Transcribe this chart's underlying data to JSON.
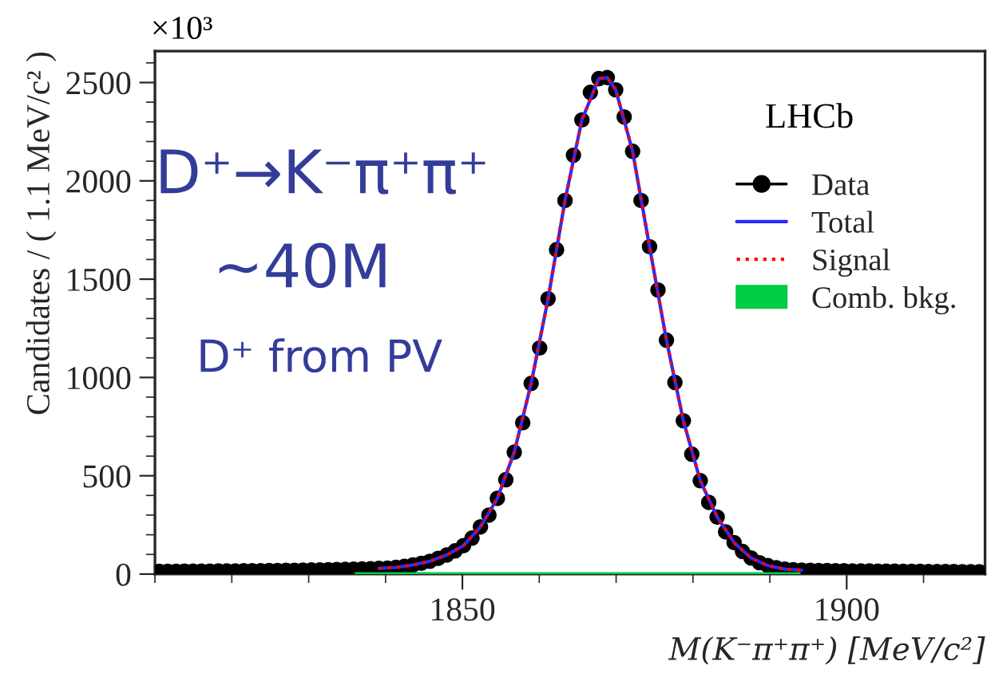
{
  "chart_data": {
    "type": "scatter",
    "xlabel": "M(K⁻π⁺π⁺) [MeV/c²]",
    "ylabel": "Candidates / ( 1.1 MeV/c² )",
    "xlim": [
      1810,
      1918
    ],
    "xticks": [
      1850,
      1900
    ],
    "ylim": [
      0,
      2660
    ],
    "yticks": [
      0,
      500,
      1000,
      1500,
      2000,
      2500
    ],
    "legend": "top right",
    "grid": false,
    "annotations": [
      "×10³",
      "LHCb",
      "D⁺→K⁻π⁺π⁺",
      "~40M",
      "D⁺ from PV"
    ],
    "series": [
      {
        "name": "Data",
        "marker": "circle",
        "color": "#000000",
        "x": [
          1810.55,
          1811.65,
          1812.75,
          1813.85,
          1814.95,
          1816.05,
          1817.15,
          1818.25,
          1819.35,
          1820.45,
          1821.55,
          1822.65,
          1823.75,
          1824.85,
          1825.95,
          1827.05,
          1828.15,
          1829.25,
          1830.35,
          1831.45,
          1832.55,
          1833.65,
          1834.75,
          1835.85,
          1836.95,
          1838.05,
          1839.15,
          1840.25,
          1841.35,
          1842.45,
          1843.55,
          1844.65,
          1845.75,
          1846.85,
          1847.95,
          1849.05,
          1850.15,
          1851.25,
          1852.35,
          1853.45,
          1854.55,
          1855.65,
          1856.75,
          1857.85,
          1858.95,
          1860.05,
          1861.15,
          1862.25,
          1863.35,
          1864.45,
          1865.55,
          1866.65,
          1867.75,
          1868.85,
          1869.95,
          1871.05,
          1872.15,
          1873.25,
          1874.35,
          1875.45,
          1876.55,
          1877.65,
          1878.75,
          1879.85,
          1880.95,
          1882.05,
          1883.15,
          1884.25,
          1885.35,
          1886.45,
          1887.55,
          1888.65,
          1889.75,
          1890.85,
          1891.95,
          1893.05,
          1894.15,
          1895.25,
          1896.35,
          1897.45,
          1898.55,
          1899.65,
          1900.75,
          1901.85,
          1902.95,
          1904.05,
          1905.15,
          1906.25,
          1907.35,
          1908.45,
          1909.55,
          1910.65,
          1911.75,
          1912.85,
          1913.95,
          1915.05,
          1916.15,
          1917.25
        ],
        "values": [
          14,
          14,
          14,
          15,
          15,
          15,
          15,
          16,
          16,
          16,
          17,
          17,
          17,
          18,
          18,
          19,
          19,
          20,
          21,
          21,
          22,
          23,
          24,
          25,
          26,
          27,
          29,
          30,
          34,
          39,
          46,
          55,
          65,
          80,
          97,
          118,
          145,
          183,
          240,
          300,
          385,
          480,
          620,
          770,
          970,
          1150,
          1400,
          1650,
          1900,
          2130,
          2310,
          2450,
          2520,
          2525,
          2463,
          2325,
          2150,
          1900,
          1665,
          1445,
          1190,
          975,
          780,
          610,
          475,
          365,
          290,
          215,
          160,
          115,
          82,
          58,
          43,
          32,
          25,
          22,
          20,
          19,
          18,
          18,
          17,
          17,
          16,
          16,
          16,
          15,
          15,
          15,
          14,
          14,
          14,
          13,
          13,
          13,
          13,
          12,
          12,
          12
        ]
      },
      {
        "name": "Total",
        "type": "line",
        "line_style": "solid",
        "color": "#2b2bff",
        "x": [
          1839.15,
          1841.35,
          1843.55,
          1845.75,
          1847.95,
          1850.15,
          1852.35,
          1854.55,
          1856.75,
          1858.95,
          1861.15,
          1863.35,
          1865.55,
          1867.75,
          1868.85,
          1869.95,
          1872.15,
          1874.35,
          1876.55,
          1878.75,
          1880.95,
          1883.15,
          1885.35,
          1887.55,
          1889.75,
          1891.95,
          1894.15
        ],
        "values": [
          29,
          34,
          46,
          65,
          97,
          145,
          240,
          385,
          620,
          970,
          1400,
          1900,
          2310,
          2520,
          2525,
          2463,
          2150,
          1665,
          1190,
          780,
          475,
          290,
          160,
          82,
          43,
          25,
          20
        ]
      },
      {
        "name": "Signal",
        "type": "line",
        "line_style": "dotted",
        "color": "#ff0000",
        "x": [
          1839.15,
          1841.35,
          1843.55,
          1845.75,
          1847.95,
          1850.15,
          1852.35,
          1854.55,
          1856.75,
          1858.95,
          1861.15,
          1863.35,
          1865.55,
          1867.75,
          1868.85,
          1869.95,
          1872.15,
          1874.35,
          1876.55,
          1878.75,
          1880.95,
          1883.15,
          1885.35,
          1887.55,
          1889.75,
          1891.95,
          1894.15
        ],
        "values": [
          29,
          34,
          46,
          65,
          97,
          145,
          240,
          385,
          620,
          970,
          1400,
          1900,
          2310,
          2520,
          2525,
          2463,
          2150,
          1665,
          1190,
          780,
          475,
          290,
          160,
          82,
          43,
          25,
          20
        ]
      },
      {
        "name": "Comb. bkg.",
        "type": "area",
        "color": "#00cc44",
        "x": [
          1836,
          1894
        ],
        "values": [
          10,
          10
        ]
      }
    ]
  }
}
